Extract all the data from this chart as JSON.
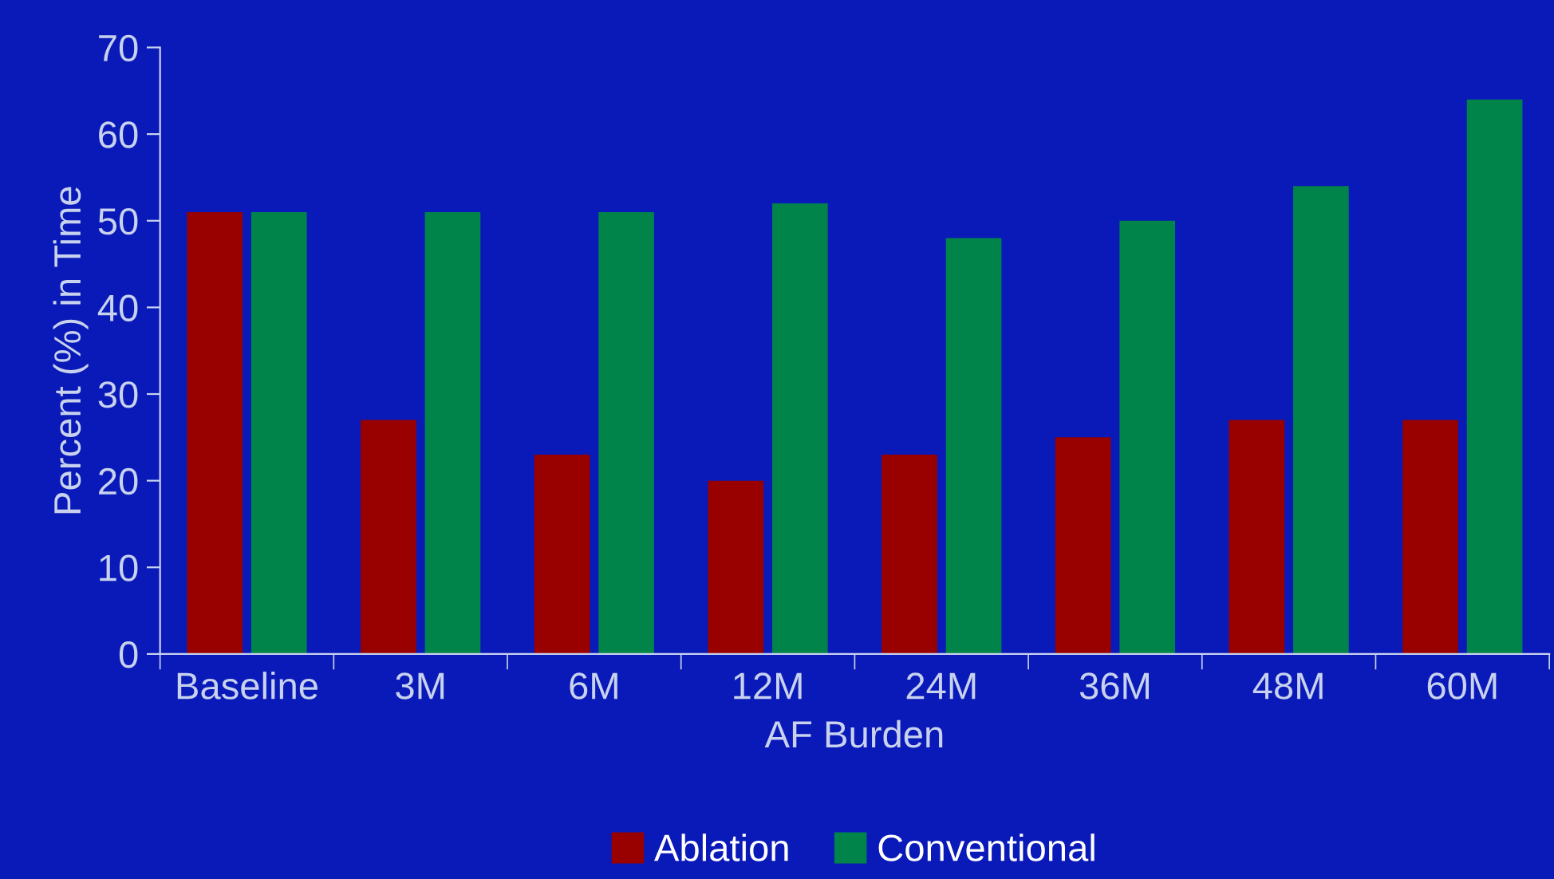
{
  "chart_data": {
    "type": "bar",
    "xlabel": "AF Burden",
    "ylabel": "Percent (%) in Time",
    "categories": [
      "Baseline",
      "3M",
      "6M",
      "12M",
      "24M",
      "36M",
      "48M",
      "60M"
    ],
    "series": [
      {
        "name": "Ablation",
        "color": "#990000",
        "values": [
          51,
          27,
          23,
          20,
          23,
          25,
          27,
          27
        ]
      },
      {
        "name": "Conventional",
        "color": "#00844a",
        "values": [
          51,
          51,
          51,
          52,
          48,
          50,
          54,
          64
        ]
      }
    ],
    "ylim": [
      0,
      70
    ],
    "yticks": [
      0,
      10,
      20,
      30,
      40,
      50,
      60,
      70
    ],
    "grid": false,
    "legend": "bottom"
  }
}
